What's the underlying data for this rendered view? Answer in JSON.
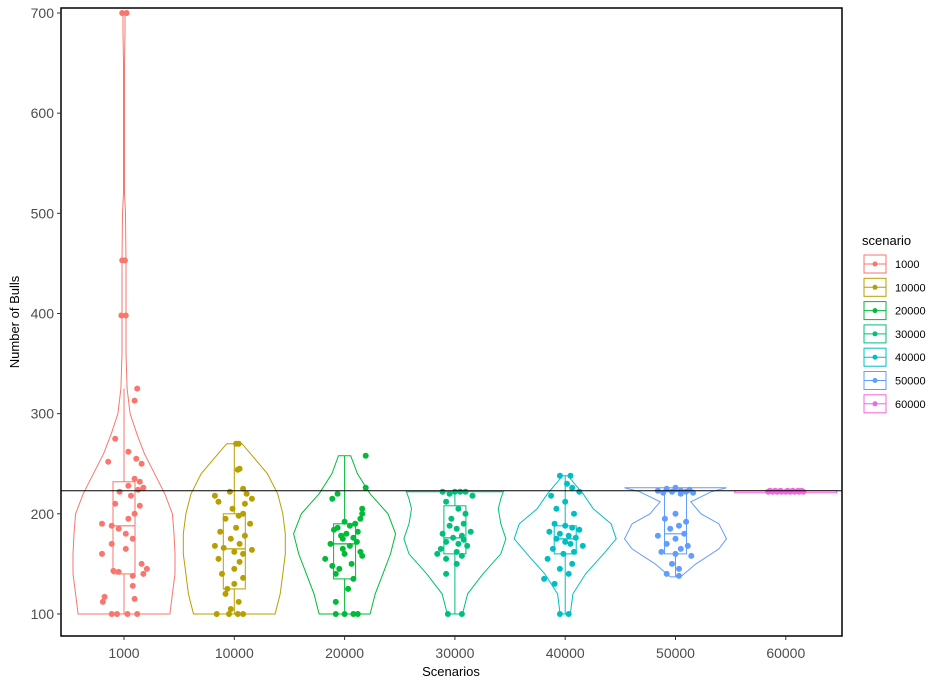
{
  "chart_data": {
    "type": "violin",
    "xlabel": "Scenarios",
    "ylabel": "Number of Bulls",
    "ylim": [
      78,
      705
    ],
    "yticks": [
      100,
      200,
      300,
      400,
      500,
      600,
      700
    ],
    "reference_line": 223,
    "grid": false,
    "legend": {
      "title": "scenario",
      "position": "right"
    },
    "categories": [
      "1000",
      "10000",
      "20000",
      "30000",
      "40000",
      "50000",
      "60000"
    ],
    "series": [
      {
        "name": "1000",
        "color": "#F8766D",
        "box": {
          "min": 100,
          "q1": 140,
          "median": 188,
          "q3": 232,
          "max": 325
        },
        "violin": [
          [
            100,
            0.9
          ],
          [
            120,
            0.95
          ],
          [
            140,
            1.0
          ],
          [
            160,
            1.0
          ],
          [
            180,
            0.98
          ],
          [
            200,
            0.95
          ],
          [
            220,
            0.8
          ],
          [
            240,
            0.6
          ],
          [
            260,
            0.4
          ],
          [
            280,
            0.25
          ],
          [
            300,
            0.12
          ],
          [
            325,
            0.06
          ],
          [
            360,
            0.04
          ],
          [
            400,
            0.04
          ],
          [
            450,
            0.04
          ],
          [
            500,
            0.03
          ],
          [
            520,
            0.01
          ],
          [
            550,
            0.01
          ],
          [
            600,
            0.01
          ],
          [
            650,
            0.01
          ],
          [
            680,
            0.02
          ],
          [
            700,
            0.02
          ]
        ],
        "points": [
          [
            700,
            -0.02
          ],
          [
            700,
            0.03
          ],
          [
            453,
            -0.02
          ],
          [
            453,
            0.01
          ],
          [
            398,
            -0.03
          ],
          [
            398,
            0.02
          ],
          [
            325,
            0.15
          ],
          [
            313,
            0.12
          ],
          [
            275,
            -0.1
          ],
          [
            262,
            0.05
          ],
          [
            255,
            0.14
          ],
          [
            252,
            -0.18
          ],
          [
            250,
            0.2
          ],
          [
            235,
            0.12
          ],
          [
            232,
            0.18
          ],
          [
            228,
            0.05
          ],
          [
            226,
            0.22
          ],
          [
            224,
            0.16
          ],
          [
            222,
            -0.05
          ],
          [
            218,
            0.08
          ],
          [
            210,
            -0.1
          ],
          [
            208,
            0.18
          ],
          [
            200,
            0.12
          ],
          [
            195,
            0.05
          ],
          [
            190,
            -0.25
          ],
          [
            188,
            -0.14
          ],
          [
            185,
            -0.06
          ],
          [
            180,
            0.02
          ],
          [
            175,
            0.1
          ],
          [
            170,
            -0.14
          ],
          [
            165,
            0.02
          ],
          [
            160,
            -0.25
          ],
          [
            150,
            0.2
          ],
          [
            145,
            0.26
          ],
          [
            143,
            -0.12
          ],
          [
            142,
            -0.06
          ],
          [
            140,
            0.22
          ],
          [
            138,
            0.1
          ],
          [
            128,
            0.1
          ],
          [
            117,
            -0.22
          ],
          [
            115,
            0.12
          ],
          [
            112,
            -0.24
          ],
          [
            100,
            -0.14
          ],
          [
            100,
            -0.08
          ],
          [
            100,
            0.04
          ],
          [
            100,
            0.15
          ]
        ]
      },
      {
        "name": "10000",
        "color": "#B79F00",
        "box": {
          "min": 100,
          "q1": 125,
          "median": 165,
          "q3": 200,
          "max": 270
        },
        "violin": [
          [
            100,
            0.8
          ],
          [
            120,
            0.9
          ],
          [
            140,
            0.95
          ],
          [
            160,
            1.0
          ],
          [
            180,
            1.0
          ],
          [
            200,
            0.95
          ],
          [
            220,
            0.85
          ],
          [
            240,
            0.65
          ],
          [
            255,
            0.4
          ],
          [
            270,
            0.15
          ]
        ],
        "points": [
          [
            270,
            0.02
          ],
          [
            270,
            0.05
          ],
          [
            245,
            0.06
          ],
          [
            244,
            0.04
          ],
          [
            225,
            0.1
          ],
          [
            222,
            -0.05
          ],
          [
            220,
            0.14
          ],
          [
            218,
            -0.22
          ],
          [
            215,
            0.2
          ],
          [
            212,
            -0.18
          ],
          [
            210,
            0.12
          ],
          [
            205,
            -0.02
          ],
          [
            200,
            0.1
          ],
          [
            198,
            0.05
          ],
          [
            195,
            -0.1
          ],
          [
            190,
            0.18
          ],
          [
            186,
            0.02
          ],
          [
            182,
            -0.16
          ],
          [
            178,
            0.12
          ],
          [
            175,
            -0.04
          ],
          [
            170,
            0.06
          ],
          [
            168,
            -0.22
          ],
          [
            166,
            -0.12
          ],
          [
            164,
            0.2
          ],
          [
            162,
            0.0
          ],
          [
            160,
            0.1
          ],
          [
            155,
            -0.18
          ],
          [
            152,
            0.06
          ],
          [
            145,
            0.0
          ],
          [
            140,
            -0.14
          ],
          [
            136,
            0.1
          ],
          [
            130,
            0.0
          ],
          [
            125,
            -0.08
          ],
          [
            120,
            -0.1
          ],
          [
            112,
            0.05
          ],
          [
            105,
            -0.04
          ],
          [
            100,
            -0.2
          ],
          [
            100,
            -0.06
          ],
          [
            100,
            0.04
          ],
          [
            100,
            0.1
          ]
        ]
      },
      {
        "name": "20000",
        "color": "#00BA38",
        "box": {
          "min": 100,
          "q1": 135,
          "median": 170,
          "q3": 190,
          "max": 258
        },
        "violin": [
          [
            100,
            0.5
          ],
          [
            120,
            0.6
          ],
          [
            140,
            0.75
          ],
          [
            160,
            0.9
          ],
          [
            180,
            1.0
          ],
          [
            200,
            0.85
          ],
          [
            220,
            0.5
          ],
          [
            240,
            0.25
          ],
          [
            258,
            0.12
          ]
        ],
        "points": [
          [
            258,
            0.24
          ],
          [
            226,
            0.24
          ],
          [
            220,
            -0.08
          ],
          [
            215,
            -0.14
          ],
          [
            205,
            0.2
          ],
          [
            200,
            0.2
          ],
          [
            195,
            0.18
          ],
          [
            192,
            0.0
          ],
          [
            190,
            0.12
          ],
          [
            188,
            0.06
          ],
          [
            186,
            -0.08
          ],
          [
            184,
            -0.12
          ],
          [
            182,
            0.15
          ],
          [
            180,
            0.02
          ],
          [
            178,
            -0.04
          ],
          [
            176,
            0.1
          ],
          [
            175,
            -0.02
          ],
          [
            172,
            0.14
          ],
          [
            170,
            -0.16
          ],
          [
            168,
            0.06
          ],
          [
            165,
            -0.02
          ],
          [
            162,
            0.18
          ],
          [
            160,
            0.0
          ],
          [
            158,
            0.2
          ],
          [
            155,
            -0.22
          ],
          [
            150,
            0.08
          ],
          [
            148,
            -0.14
          ],
          [
            145,
            -0.06
          ],
          [
            140,
            -0.1
          ],
          [
            135,
            0.1
          ],
          [
            125,
            0.04
          ],
          [
            112,
            -0.1
          ],
          [
            100,
            -0.1
          ],
          [
            100,
            0.0
          ],
          [
            100,
            0.1
          ],
          [
            100,
            0.15
          ]
        ]
      },
      {
        "name": "30000",
        "color": "#00BF7D",
        "box": {
          "min": 100,
          "q1": 160,
          "median": 176,
          "q3": 208,
          "max": 222
        },
        "violin": [
          [
            100,
            0.15
          ],
          [
            120,
            0.25
          ],
          [
            140,
            0.55
          ],
          [
            160,
            0.9
          ],
          [
            175,
            1.0
          ],
          [
            190,
            0.9
          ],
          [
            205,
            0.85
          ],
          [
            215,
            0.9
          ],
          [
            222,
            0.95
          ]
        ],
        "points": [
          [
            222,
            -0.14
          ],
          [
            222,
            0.0
          ],
          [
            222,
            0.06
          ],
          [
            222,
            0.12
          ],
          [
            220,
            -0.06
          ],
          [
            218,
            0.2
          ],
          [
            212,
            -0.1
          ],
          [
            205,
            0.04
          ],
          [
            200,
            0.12
          ],
          [
            195,
            -0.04
          ],
          [
            190,
            0.1
          ],
          [
            188,
            -0.06
          ],
          [
            185,
            0.02
          ],
          [
            182,
            0.18
          ],
          [
            180,
            -0.14
          ],
          [
            178,
            0.08
          ],
          [
            176,
            -0.02
          ],
          [
            174,
            0.1
          ],
          [
            172,
            -0.1
          ],
          [
            170,
            0.04
          ],
          [
            168,
            0.14
          ],
          [
            165,
            -0.16
          ],
          [
            162,
            0.02
          ],
          [
            160,
            -0.2
          ],
          [
            158,
            0.08
          ],
          [
            155,
            -0.1
          ],
          [
            150,
            0.02
          ],
          [
            140,
            -0.1
          ],
          [
            100,
            -0.08
          ],
          [
            100,
            0.08
          ]
        ]
      },
      {
        "name": "40000",
        "color": "#00BFC4",
        "box": {
          "min": 100,
          "q1": 160,
          "median": 175,
          "q3": 188,
          "max": 238
        },
        "violin": [
          [
            100,
            0.1
          ],
          [
            120,
            0.15
          ],
          [
            140,
            0.4
          ],
          [
            160,
            0.75
          ],
          [
            175,
            1.0
          ],
          [
            190,
            0.9
          ],
          [
            205,
            0.55
          ],
          [
            220,
            0.35
          ],
          [
            238,
            0.05
          ]
        ],
        "points": [
          [
            238,
            -0.06
          ],
          [
            238,
            0.06
          ],
          [
            230,
            0.02
          ],
          [
            226,
            0.08
          ],
          [
            222,
            0.16
          ],
          [
            218,
            -0.16
          ],
          [
            212,
            0.0
          ],
          [
            205,
            -0.1
          ],
          [
            200,
            0.1
          ],
          [
            190,
            -0.12
          ],
          [
            188,
            0.0
          ],
          [
            186,
            0.08
          ],
          [
            184,
            0.16
          ],
          [
            182,
            -0.18
          ],
          [
            180,
            -0.06
          ],
          [
            178,
            0.04
          ],
          [
            176,
            0.12
          ],
          [
            175,
            -0.1
          ],
          [
            172,
            0.0
          ],
          [
            170,
            0.06
          ],
          [
            168,
            0.2
          ],
          [
            165,
            -0.14
          ],
          [
            162,
            0.1
          ],
          [
            160,
            -0.02
          ],
          [
            155,
            -0.2
          ],
          [
            150,
            0.08
          ],
          [
            145,
            -0.06
          ],
          [
            140,
            0.04
          ],
          [
            135,
            -0.24
          ],
          [
            130,
            -0.12
          ],
          [
            100,
            -0.06
          ],
          [
            100,
            0.04
          ]
        ]
      },
      {
        "name": "50000",
        "color": "#619CFF",
        "box": {
          "min": 137,
          "q1": 160,
          "median": 180,
          "q3": 222,
          "max": 226
        },
        "violin": [
          [
            137,
            0.1
          ],
          [
            150,
            0.4
          ],
          [
            165,
            0.85
          ],
          [
            175,
            1.0
          ],
          [
            190,
            0.85
          ],
          [
            200,
            0.5
          ],
          [
            212,
            0.3
          ],
          [
            222,
            0.7
          ],
          [
            226,
            1.0
          ]
        ],
        "points": [
          [
            226,
            0.0
          ],
          [
            225,
            -0.1
          ],
          [
            224,
            0.16
          ],
          [
            223,
            -0.2
          ],
          [
            223,
            0.06
          ],
          [
            222,
            -0.04
          ],
          [
            222,
            0.12
          ],
          [
            221,
            -0.14
          ],
          [
            221,
            0.2
          ],
          [
            220,
            0.06
          ],
          [
            200,
            0.0
          ],
          [
            195,
            -0.12
          ],
          [
            192,
            0.12
          ],
          [
            188,
            0.04
          ],
          [
            185,
            -0.06
          ],
          [
            180,
            0.1
          ],
          [
            178,
            -0.2
          ],
          [
            175,
            0.0
          ],
          [
            170,
            -0.1
          ],
          [
            168,
            0.14
          ],
          [
            165,
            0.06
          ],
          [
            162,
            -0.16
          ],
          [
            160,
            0.0
          ],
          [
            158,
            0.18
          ],
          [
            150,
            -0.04
          ],
          [
            145,
            0.04
          ],
          [
            140,
            -0.1
          ],
          [
            138,
            0.04
          ]
        ]
      },
      {
        "name": "60000",
        "color": "#F564E3",
        "box": {
          "min": 222,
          "q1": 222,
          "median": 222,
          "q3": 223,
          "max": 223
        },
        "violin": [
          [
            221,
            1.0
          ],
          [
            223,
            1.0
          ]
        ],
        "points": [
          [
            222,
            -0.2
          ],
          [
            222,
            -0.15
          ],
          [
            222,
            -0.1
          ],
          [
            222,
            -0.05
          ],
          [
            222,
            0.0
          ],
          [
            222,
            0.05
          ],
          [
            222,
            0.1
          ],
          [
            222,
            0.15
          ],
          [
            222,
            0.2
          ],
          [
            223,
            -0.18
          ],
          [
            223,
            -0.12
          ],
          [
            223,
            -0.06
          ],
          [
            223,
            0.02
          ],
          [
            223,
            0.08
          ],
          [
            223,
            0.14
          ],
          [
            223,
            0.18
          ]
        ]
      }
    ]
  }
}
